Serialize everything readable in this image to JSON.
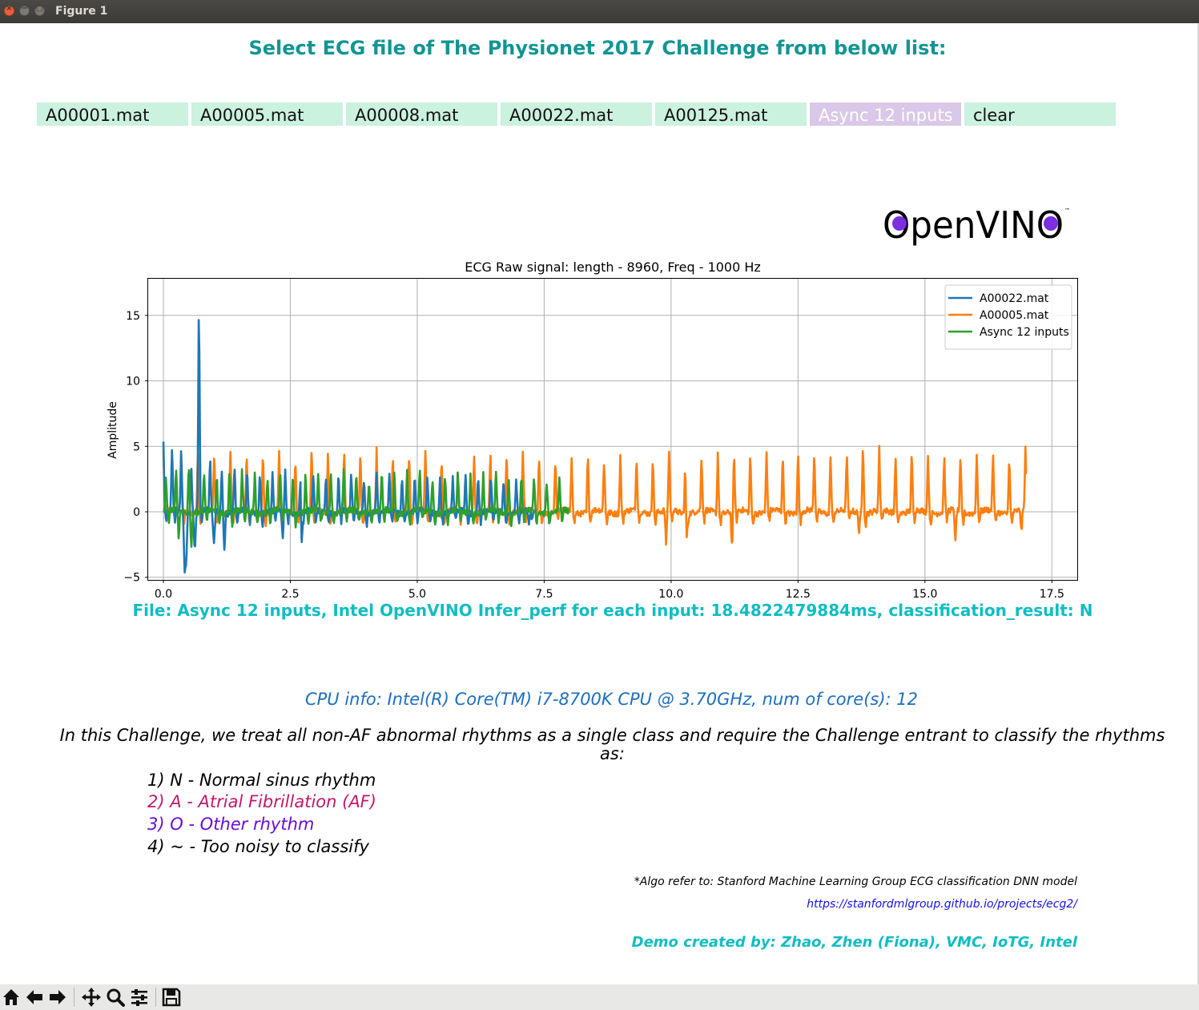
{
  "window": {
    "title": "Figure 1"
  },
  "heading": "Select ECG file of The Physionet 2017 Challenge from below list:",
  "file_buttons": [
    {
      "label": "A00001.mat",
      "active": false
    },
    {
      "label": "A00005.mat",
      "active": false
    },
    {
      "label": "A00008.mat",
      "active": false
    },
    {
      "label": "A00022.mat",
      "active": false
    },
    {
      "label": "A00125.mat",
      "active": false
    },
    {
      "label": "Async 12 inputs",
      "active": true
    },
    {
      "label": "clear",
      "active": false
    }
  ],
  "logo": {
    "text": "OpenVINO",
    "trademark": "™"
  },
  "colors": {
    "heading": "#119594",
    "button_bg": "#cbf1df",
    "button_active_bg": "#d9c8e8",
    "result": "#10bdc2",
    "cpu": "#1d6ec0",
    "rhythm_af": "#c2186b",
    "rhythm_other": "#6a0dd6",
    "link": "#1212e6",
    "logo_eye": "#7b2fe0"
  },
  "chart_data": {
    "type": "line",
    "title": "ECG Raw signal: length - 8960, Freq - 1000 Hz",
    "xlabel": "",
    "ylabel": "Amplitude",
    "xlim": [
      -0.3,
      18.0
    ],
    "ylim": [
      -5.2,
      17.8
    ],
    "xticks": [
      0.0,
      2.5,
      5.0,
      7.5,
      10.0,
      12.5,
      15.0,
      17.5
    ],
    "xtick_labels": [
      "0.0",
      "2.5",
      "5.0",
      "7.5",
      "10.0",
      "12.5",
      "15.0",
      "17.5"
    ],
    "yticks": [
      -5,
      0,
      5,
      10,
      15
    ],
    "ytick_labels": [
      "−5",
      "0",
      "5",
      "10",
      "15"
    ],
    "grid": true,
    "legend_position": "top-right",
    "series": [
      {
        "name": "A00022.mat",
        "color": "#1f77b4",
        "duration": 7.3,
        "beat_times": [
          0.0,
          0.17,
          0.35,
          0.55,
          0.7,
          0.92,
          1.15,
          1.4,
          1.65,
          1.9,
          2.15,
          2.4,
          2.7,
          2.95,
          3.2,
          3.45,
          3.7,
          3.95,
          4.2,
          4.45,
          4.7,
          4.95,
          5.2,
          5.45,
          5.7,
          5.95,
          6.2,
          6.45,
          6.7,
          6.95,
          7.2
        ],
        "peaks": [
          5.2,
          5.0,
          4.8,
          3.5,
          16.8,
          4.2,
          3.6,
          3.8,
          3.2,
          3.4,
          3.0,
          3.2,
          3.3,
          3.0,
          2.8,
          3.0,
          2.9,
          2.7,
          3.0,
          2.8,
          2.9,
          2.7,
          3.0,
          2.8,
          2.6,
          2.8,
          2.9,
          2.7,
          2.6,
          2.8,
          2.5
        ],
        "troughs": [
          {
            "t": 0.42,
            "v": -4.2
          },
          {
            "t": 0.45,
            "v": -4.0
          },
          {
            "t": 0.62,
            "v": -2.6
          },
          {
            "t": 1.0,
            "v": -2.5
          },
          {
            "t": 1.2,
            "v": -2.2
          },
          {
            "t": 2.35,
            "v": -2.5
          },
          {
            "t": 2.72,
            "v": -3.3
          },
          {
            "t": 7.2,
            "v": -3.5
          }
        ]
      },
      {
        "name": "A00005.mat",
        "color": "#ff7f0e",
        "duration": 17.0,
        "beat_times": [
          0.0,
          0.35,
          0.68,
          1.0,
          1.32,
          1.64,
          1.96,
          2.28,
          2.6,
          2.92,
          3.24,
          3.56,
          3.88,
          4.2,
          4.52,
          4.84,
          5.16,
          5.48,
          5.8,
          6.12,
          6.44,
          6.76,
          7.08,
          7.4,
          7.72,
          8.04,
          8.36,
          8.68,
          9.0,
          9.32,
          9.64,
          9.96,
          10.28,
          10.6,
          10.92,
          11.24,
          11.56,
          11.88,
          12.2,
          12.5,
          12.82,
          13.14,
          13.46,
          13.78,
          14.1,
          14.42,
          14.74,
          15.06,
          15.38,
          15.7,
          16.02,
          16.34,
          16.66,
          16.98
        ],
        "peaks": [
          4.6,
          4.2,
          4.8,
          4.6,
          4.8,
          4.5,
          4.9,
          4.6,
          4.4,
          4.8,
          4.5,
          4.7,
          4.6,
          4.8,
          4.5,
          4.7,
          4.6,
          4.3,
          4.5,
          4.4,
          4.6,
          4.8,
          4.5,
          4.4,
          4.2,
          4.3,
          4.5,
          4.2,
          4.4,
          4.3,
          4.6,
          4.5,
          4.4,
          4.3,
          4.6,
          4.4,
          4.8,
          4.5,
          4.4,
          6.1,
          4.6,
          4.5,
          4.6,
          5.5,
          4.7,
          4.6,
          4.5,
          4.4,
          4.5,
          4.3,
          4.5,
          4.6,
          4.5,
          4.7
        ],
        "troughs": [
          {
            "t": 5.8,
            "v": -2.3
          },
          {
            "t": 9.9,
            "v": -2.6
          },
          {
            "t": 10.3,
            "v": -2.8
          },
          {
            "t": 11.2,
            "v": -2.9
          },
          {
            "t": 12.5,
            "v": -1.0
          },
          {
            "t": 13.7,
            "v": -1.5
          },
          {
            "t": 15.6,
            "v": -2.5
          },
          {
            "t": 16.9,
            "v": -1.8
          }
        ]
      },
      {
        "name": "Async 12 inputs",
        "color": "#2ca02c",
        "duration": 8.0,
        "beat_times": [
          0.05,
          0.25,
          0.5,
          0.8,
          1.05,
          1.3,
          1.55,
          1.8,
          2.05,
          2.3,
          2.55,
          2.8,
          3.05,
          3.3,
          3.55,
          3.8,
          4.05,
          4.3,
          4.55,
          4.8,
          5.05,
          5.3,
          5.55,
          5.8,
          6.05,
          6.3,
          6.55,
          6.8,
          7.05,
          7.3,
          7.55,
          7.8
        ],
        "peaks": [
          2.5,
          3.2,
          3.9,
          3.0,
          2.8,
          3.6,
          3.1,
          3.0,
          2.8,
          3.2,
          3.3,
          3.1,
          3.0,
          2.9,
          3.2,
          3.0,
          2.8,
          3.1,
          3.0,
          3.1,
          3.2,
          2.9,
          3.0,
          3.1,
          3.2,
          2.8,
          3.0,
          2.9,
          2.8,
          2.7,
          2.6,
          2.5
        ],
        "troughs": [
          {
            "t": 0.3,
            "v": -1.5
          },
          {
            "t": 0.55,
            "v": -1.8
          }
        ]
      }
    ]
  },
  "result_line": "File: Async 12 inputs, Intel OpenVINO Infer_perf for each input: 18.4822479884ms, classification_result: N",
  "cpu_info": "CPU info: Intel(R) Core(TM) i7-8700K CPU @ 3.70GHz, num of core(s): 12",
  "challenge_text": "In this Challenge, we treat all non-AF abnormal rhythms as a single class and require the Challenge entrant to classify the rhythms as:",
  "rhythms": [
    "1) N - Normal sinus rhythm",
    "2) A - Atrial Fibrillation (AF)",
    "3) O - Other rhythm",
    "4) ~ - Too noisy to classify"
  ],
  "algo_ref": "*Algo refer to: Stanford Machine Learning Group ECG classification DNN model",
  "algo_link": "https://stanfordmlgroup.github.io/projects/ecg2/",
  "credit": "Demo created by: Zhao, Zhen (Fiona), VMC, IoTG, Intel",
  "toolbar": {
    "buttons": [
      "home-icon",
      "back-icon",
      "forward-icon",
      "pan-icon",
      "zoom-icon",
      "configure-subplots-icon",
      "save-icon"
    ]
  }
}
